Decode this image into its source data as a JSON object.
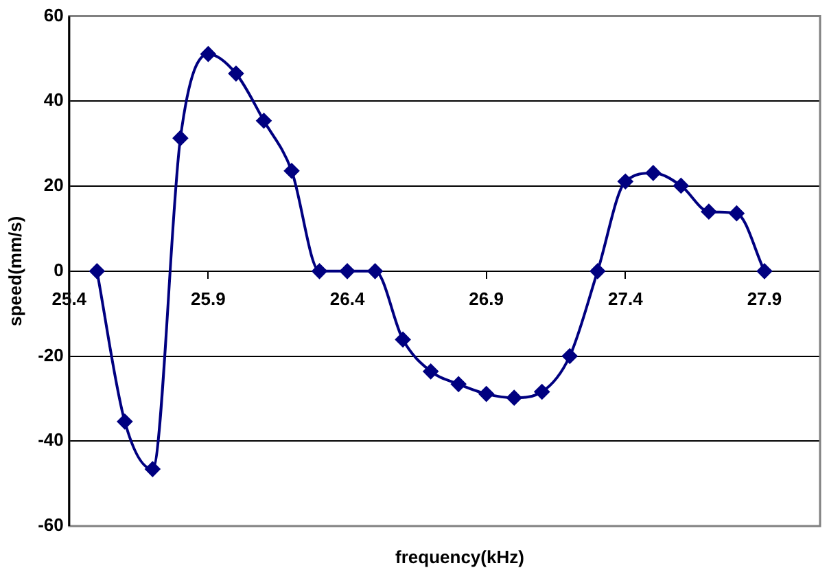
{
  "chart_data": {
    "type": "line",
    "xlabel": "frequency(kHz)",
    "ylabel": "speed(mm/s)",
    "x": [
      25.5,
      25.6,
      25.7,
      25.8,
      25.9,
      26.0,
      26.1,
      26.2,
      26.3,
      26.4,
      26.5,
      26.6,
      26.7,
      26.8,
      26.9,
      27.0,
      27.1,
      27.2,
      27.3,
      27.4,
      27.5,
      27.6,
      27.7,
      27.8,
      27.9
    ],
    "series": [
      {
        "color": "#000080",
        "values": [
          0,
          -35.4,
          -46.6,
          31.3,
          51.1,
          46.5,
          35.4,
          23.6,
          0,
          0,
          0,
          -16.1,
          -23.6,
          -26.6,
          -28.9,
          -29.8,
          -28.4,
          -20,
          0,
          21.1,
          23.1,
          20.1,
          14.0,
          13.6,
          0
        ]
      }
    ],
    "xlim": [
      25.4,
      28.1
    ],
    "xticks": [
      25.4,
      25.9,
      26.4,
      26.9,
      27.4,
      27.9
    ],
    "ylim": [
      -60,
      60
    ],
    "yticks": [
      -60,
      -40,
      -20,
      0,
      20,
      40,
      60
    ],
    "grid": "y",
    "legend": false,
    "marker": "diamond",
    "line_style": "solid"
  }
}
